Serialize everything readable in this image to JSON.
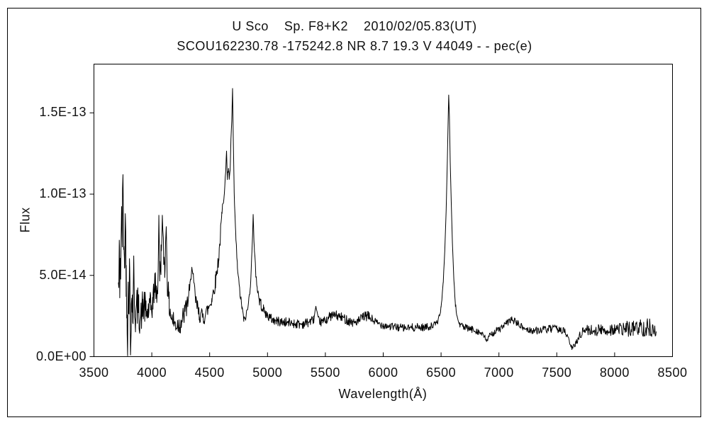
{
  "figure": {
    "title_line1": "U Sco    Sp. F8+K2    2010/02/05.83(UT)",
    "title_line2": "SCOU162230.78 -175242.8 NR 8.7 19.3 V 44049 - - pec(e)"
  },
  "chart_data": {
    "type": "line",
    "title": "U Sco    Sp. F8+K2    2010/02/05.83(UT)",
    "subtitle": "SCOU162230.78 -175242.8 NR 8.7 19.3 V 44049 - - pec(e)",
    "xlabel": "Wavelength(Å)",
    "ylabel": "Flux",
    "xlim": [
      3500,
      8500
    ],
    "ylim": [
      0,
      1.8e-13
    ],
    "grid": false,
    "legend": "none",
    "line_color": "#000000",
    "background_color": "#ffffff",
    "x_ticks": [
      {
        "value": 3500,
        "label": "3500"
      },
      {
        "value": 4000,
        "label": "4000"
      },
      {
        "value": 4500,
        "label": "4500"
      },
      {
        "value": 5000,
        "label": "5000"
      },
      {
        "value": 5500,
        "label": "5500"
      },
      {
        "value": 6000,
        "label": "6000"
      },
      {
        "value": 6500,
        "label": "6500"
      },
      {
        "value": 7000,
        "label": "7000"
      },
      {
        "value": 7500,
        "label": "7500"
      },
      {
        "value": 8000,
        "label": "8000"
      },
      {
        "value": 8500,
        "label": "8500"
      }
    ],
    "y_ticks": [
      {
        "value": 0,
        "label": "0.0E+00"
      },
      {
        "value": 5e-14,
        "label": "5.0E-14"
      },
      {
        "value": 1e-13,
        "label": "1.0E-13"
      },
      {
        "value": 1.5e-13,
        "label": "1.5E-13"
      }
    ],
    "wavelength_range_observed": [
      3711,
      8359
    ],
    "peaks": [
      {
        "wavelength": 3751,
        "flux": 1.12e-13
      },
      {
        "wavelength": 4061,
        "flux": 8.7e-14
      },
      {
        "wavelength": 4091,
        "flux": 8.7e-14
      },
      {
        "wavelength": 4125,
        "flux": 8e-14
      },
      {
        "wavelength": 4346,
        "flux": 5.5e-14
      },
      {
        "wavelength": 4646,
        "flux": 1.27e-13
      },
      {
        "wavelength": 4698,
        "flux": 1.65e-13
      },
      {
        "wavelength": 4876,
        "flux": 8.8e-14
      },
      {
        "wavelength": 5418,
        "flux": 3.1e-14
      },
      {
        "wavelength": 6566,
        "flux": 1.61e-13
      },
      {
        "wavelength": 7110,
        "flux": 2.3e-14
      }
    ],
    "dips": [
      {
        "wavelength": 3791,
        "flux": 5e-16
      },
      {
        "wavelength": 3816,
        "flux": 1e-15
      },
      {
        "wavelength": 6893,
        "flux": 1e-14
      },
      {
        "wavelength": 7632,
        "flux": 5e-15
      }
    ],
    "flux_scale": 1e-14,
    "sample_step_angstrom": 4,
    "noise_seed": 42,
    "anchors": [
      [
        3711,
        4.0,
        2.8
      ],
      [
        3722,
        5.5,
        3.0
      ],
      [
        3735,
        6.5,
        3.2
      ],
      [
        3745,
        8.0,
        2.5
      ],
      [
        3751,
        11.2,
        0
      ],
      [
        3757,
        7.5,
        1.5
      ],
      [
        3764,
        5.0,
        2.0
      ],
      [
        3771,
        8.8,
        0
      ],
      [
        3778,
        5.5,
        2.0
      ],
      [
        3786,
        3.5,
        2.0
      ],
      [
        3791,
        0.05,
        0
      ],
      [
        3796,
        4.5,
        1.5
      ],
      [
        3803,
        3.8,
        1.8
      ],
      [
        3809,
        5.5,
        1.5
      ],
      [
        3816,
        0.1,
        0
      ],
      [
        3822,
        3.0,
        1.5
      ],
      [
        3830,
        3.5,
        1.5
      ],
      [
        3838,
        2.5,
        1.2
      ],
      [
        3844,
        6.2,
        0
      ],
      [
        3851,
        3.0,
        1.3
      ],
      [
        3862,
        2.4,
        1.2
      ],
      [
        3875,
        3.2,
        1.4
      ],
      [
        3890,
        2.6,
        1.2
      ],
      [
        3905,
        2.4,
        1.0
      ],
      [
        3920,
        3.0,
        1.2
      ],
      [
        3935,
        3.2,
        1.2
      ],
      [
        3950,
        2.6,
        1.0
      ],
      [
        3970,
        2.8,
        1.0
      ],
      [
        3990,
        3.0,
        1.0
      ],
      [
        4010,
        3.3,
        1.0
      ],
      [
        4026,
        4.6,
        0.8
      ],
      [
        4042,
        3.8,
        1.0
      ],
      [
        4055,
        5.0,
        1.2
      ],
      [
        4061,
        8.7,
        0
      ],
      [
        4068,
        5.0,
        1.0
      ],
      [
        4080,
        6.0,
        1.2
      ],
      [
        4091,
        8.7,
        0
      ],
      [
        4100,
        6.5,
        1.0
      ],
      [
        4112,
        5.5,
        1.0
      ],
      [
        4125,
        8.0,
        0
      ],
      [
        4135,
        4.5,
        0.8
      ],
      [
        4150,
        3.2,
        0.8
      ],
      [
        4170,
        2.4,
        0.7
      ],
      [
        4200,
        2.0,
        0.7
      ],
      [
        4240,
        2.0,
        0.7
      ],
      [
        4270,
        2.4,
        0.7
      ],
      [
        4300,
        3.0,
        0.7
      ],
      [
        4330,
        4.2,
        0.5
      ],
      [
        4346,
        5.5,
        0
      ],
      [
        4360,
        4.6,
        0.5
      ],
      [
        4380,
        3.4,
        0.5
      ],
      [
        4410,
        2.6,
        0.5
      ],
      [
        4450,
        2.4,
        0.5
      ],
      [
        4490,
        3.0,
        0.5
      ],
      [
        4520,
        3.6,
        0.5
      ],
      [
        4550,
        4.6,
        0.5
      ],
      [
        4580,
        6.2,
        0.5
      ],
      [
        4605,
        8.6,
        0.5
      ],
      [
        4625,
        10.2,
        0.4
      ],
      [
        4638,
        11.2,
        0.3
      ],
      [
        4646,
        12.65,
        0
      ],
      [
        4653,
        11.0,
        0.25
      ],
      [
        4661,
        11.5,
        0.25
      ],
      [
        4669,
        11.0,
        0.2
      ],
      [
        4677,
        11.3,
        0.2
      ],
      [
        4684,
        13.4,
        0
      ],
      [
        4691,
        14.5,
        0
      ],
      [
        4698,
        16.5,
        0
      ],
      [
        4704,
        13.5,
        0
      ],
      [
        4712,
        10.0,
        0.2
      ],
      [
        4725,
        7.5,
        0.25
      ],
      [
        4740,
        5.5,
        0.25
      ],
      [
        4760,
        4.0,
        0.25
      ],
      [
        4780,
        3.0,
        0.25
      ],
      [
        4796,
        2.25,
        0.2
      ],
      [
        4815,
        2.5,
        0.25
      ],
      [
        4835,
        3.2,
        0.3
      ],
      [
        4852,
        4.5,
        0.3
      ],
      [
        4865,
        6.2,
        0.3
      ],
      [
        4876,
        8.75,
        0
      ],
      [
        4886,
        6.5,
        0.3
      ],
      [
        4898,
        5.2,
        0.3
      ],
      [
        4912,
        4.2,
        0.3
      ],
      [
        4928,
        3.5,
        0.35
      ],
      [
        4945,
        3.2,
        0.35
      ],
      [
        4965,
        2.9,
        0.3
      ],
      [
        4990,
        2.6,
        0.3
      ],
      [
        5020,
        2.4,
        0.3
      ],
      [
        5060,
        2.2,
        0.3
      ],
      [
        5110,
        2.15,
        0.3
      ],
      [
        5170,
        2.1,
        0.3
      ],
      [
        5230,
        2.05,
        0.3
      ],
      [
        5290,
        2.0,
        0.3
      ],
      [
        5350,
        2.1,
        0.3
      ],
      [
        5400,
        2.3,
        0.25
      ],
      [
        5418,
        3.1,
        0
      ],
      [
        5435,
        2.3,
        0.25
      ],
      [
        5465,
        2.1,
        0.25
      ],
      [
        5510,
        2.3,
        0.3
      ],
      [
        5545,
        2.5,
        0.3
      ],
      [
        5585,
        2.55,
        0.3
      ],
      [
        5625,
        2.45,
        0.3
      ],
      [
        5665,
        2.35,
        0.3
      ],
      [
        5705,
        2.2,
        0.3
      ],
      [
        5745,
        2.1,
        0.3
      ],
      [
        5790,
        2.2,
        0.3
      ],
      [
        5830,
        2.45,
        0.3
      ],
      [
        5870,
        2.5,
        0.3
      ],
      [
        5910,
        2.25,
        0.3
      ],
      [
        5950,
        2.05,
        0.25
      ],
      [
        6000,
        1.95,
        0.25
      ],
      [
        6060,
        1.85,
        0.25
      ],
      [
        6130,
        1.8,
        0.25
      ],
      [
        6200,
        1.75,
        0.25
      ],
      [
        6270,
        1.8,
        0.25
      ],
      [
        6340,
        1.8,
        0.25
      ],
      [
        6400,
        1.85,
        0.22
      ],
      [
        6440,
        1.95,
        0.2
      ],
      [
        6475,
        2.2,
        0.15
      ],
      [
        6500,
        3.0,
        0.12
      ],
      [
        6518,
        4.5,
        0.1
      ],
      [
        6532,
        6.5,
        0
      ],
      [
        6544,
        9.0,
        0
      ],
      [
        6554,
        12.0,
        0
      ],
      [
        6561,
        14.5,
        0
      ],
      [
        6566,
        16.1,
        0
      ],
      [
        6572,
        14.8,
        0
      ],
      [
        6579,
        12.0,
        0
      ],
      [
        6588,
        9.5,
        0
      ],
      [
        6598,
        7.0,
        0
      ],
      [
        6610,
        4.8,
        0.1
      ],
      [
        6624,
        3.2,
        0.15
      ],
      [
        6640,
        2.4,
        0.18
      ],
      [
        6660,
        2.0,
        0.2
      ],
      [
        6700,
        1.8,
        0.22
      ],
      [
        6750,
        1.7,
        0.22
      ],
      [
        6810,
        1.6,
        0.22
      ],
      [
        6860,
        1.35,
        0.2
      ],
      [
        6893,
        1.0,
        0.18
      ],
      [
        6925,
        1.3,
        0.2
      ],
      [
        6965,
        1.55,
        0.22
      ],
      [
        7010,
        1.7,
        0.22
      ],
      [
        7060,
        2.0,
        0.22
      ],
      [
        7110,
        2.3,
        0.22
      ],
      [
        7150,
        2.1,
        0.22
      ],
      [
        7200,
        1.8,
        0.22
      ],
      [
        7250,
        1.65,
        0.22
      ],
      [
        7310,
        1.6,
        0.22
      ],
      [
        7380,
        1.65,
        0.25
      ],
      [
        7450,
        1.7,
        0.25
      ],
      [
        7520,
        1.7,
        0.25
      ],
      [
        7570,
        1.55,
        0.2
      ],
      [
        7605,
        1.0,
        0.18
      ],
      [
        7632,
        0.5,
        0.12
      ],
      [
        7660,
        0.75,
        0.18
      ],
      [
        7695,
        1.3,
        0.25
      ],
      [
        7740,
        1.65,
        0.3
      ],
      [
        7800,
        1.6,
        0.35
      ],
      [
        7860,
        1.65,
        0.38
      ],
      [
        7920,
        1.6,
        0.4
      ],
      [
        7980,
        1.7,
        0.42
      ],
      [
        8040,
        1.65,
        0.45
      ],
      [
        8100,
        1.7,
        0.48
      ],
      [
        8160,
        1.75,
        0.5
      ],
      [
        8220,
        1.8,
        0.55
      ],
      [
        8270,
        1.8,
        0.6
      ],
      [
        8320,
        1.75,
        0.55
      ],
      [
        8359,
        1.6,
        0.45
      ]
    ]
  }
}
